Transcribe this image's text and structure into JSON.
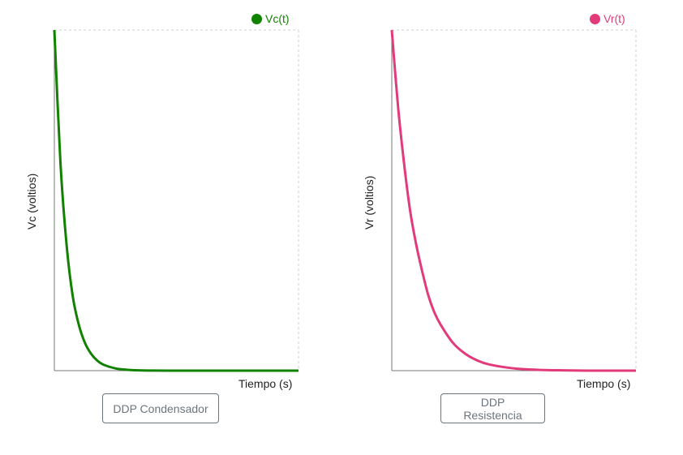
{
  "charts": [
    {
      "legend_label": "Vc(t)",
      "ylabel": "Vc (voltios)",
      "xlabel": "Tiempo (s)",
      "button_label": "DDP Condensador",
      "color": "#118100"
    },
    {
      "legend_label": "Vr(t)",
      "ylabel": "Vr (voltios)",
      "xlabel": "Tiempo (s)",
      "button_label": "DDP Resistencia",
      "color": "#e23a7a"
    }
  ],
  "chart_data": [
    {
      "type": "line",
      "xlabel": "Tiempo (s)",
      "ylabel": "Vc (voltios)",
      "grid": false,
      "legend": "top-right",
      "series": [
        {
          "name": "Vc(t)",
          "color": "#118100",
          "x": [
            0,
            0.25,
            0.5,
            0.75,
            1,
            1.25,
            1.5,
            1.75,
            2,
            2.5,
            3,
            3.5,
            4,
            5,
            6,
            7,
            8,
            9,
            10
          ],
          "y": [
            1,
            0.61,
            0.37,
            0.22,
            0.135,
            0.082,
            0.05,
            0.03,
            0.018,
            0.0067,
            0.0025,
            0.0009,
            0.0003,
            0,
            0,
            0,
            0,
            0,
            0
          ]
        }
      ]
    },
    {
      "type": "line",
      "xlabel": "Tiempo (s)",
      "ylabel": "Vr (voltios)",
      "grid": false,
      "legend": "top-right",
      "series": [
        {
          "name": "Vr(t)",
          "color": "#e23a7a",
          "x": [
            0,
            0.25,
            0.5,
            0.75,
            1,
            1.25,
            1.5,
            1.75,
            2,
            2.5,
            3,
            3.5,
            4,
            5,
            6,
            7,
            8,
            9,
            10
          ],
          "y": [
            1,
            0.78,
            0.61,
            0.47,
            0.37,
            0.29,
            0.22,
            0.17,
            0.135,
            0.082,
            0.05,
            0.03,
            0.018,
            0.0067,
            0.0025,
            0.0009,
            0,
            0,
            0
          ]
        }
      ]
    }
  ]
}
